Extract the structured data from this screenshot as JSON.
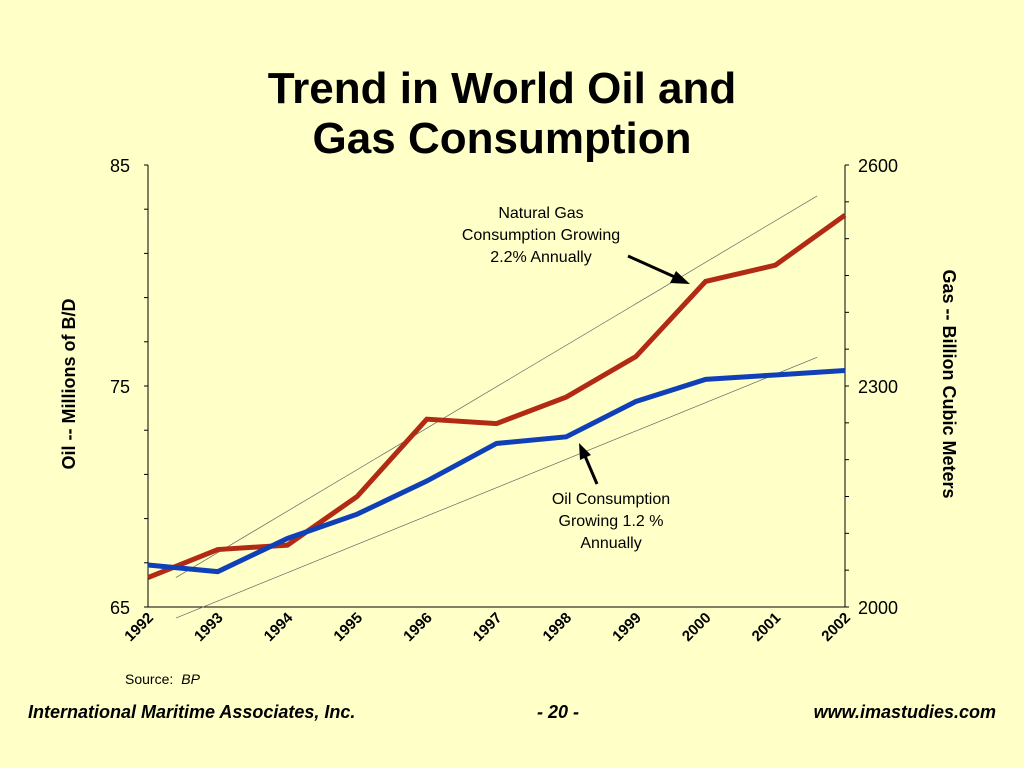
{
  "slide": {
    "title_line1": "Trend in World Oil and",
    "title_line2": "Gas Consumption"
  },
  "chart_data": {
    "type": "line",
    "categories": [
      "1992",
      "1993",
      "1994",
      "1995",
      "1996",
      "1997",
      "1998",
      "1999",
      "2000",
      "2001",
      "2002"
    ],
    "left_axis": {
      "label": "Oil -- Millions of B/D",
      "ylim": [
        65,
        85
      ],
      "ticks": [
        "85",
        "75",
        "65"
      ]
    },
    "right_axis": {
      "label": "Gas -- Billion Cubic Meters",
      "ylim": [
        2000,
        2600
      ],
      "ticks": [
        "2600",
        "2300",
        "2000"
      ]
    },
    "series": [
      {
        "axis": "right",
        "color": "#B22A14",
        "values": [
          2040,
          2078,
          2084,
          2150,
          2255,
          2249,
          2285,
          2340,
          2442,
          2464,
          2532
        ],
        "trend": [
          2040,
          2558
        ]
      },
      {
        "axis": "left",
        "color": "#1040B8",
        "values": [
          66.9,
          66.6,
          68.1,
          69.2,
          70.7,
          72.4,
          72.7,
          74.3,
          75.3,
          75.5,
          75.7
        ],
        "trend": [
          64.5,
          76.3
        ]
      }
    ],
    "annotations": [
      {
        "lines": [
          "Natural Gas",
          "Consumption Growing",
          "2.2% Annually"
        ]
      },
      {
        "lines": [
          "Oil Consumption",
          "Growing 1.2 %",
          "Annually"
        ]
      }
    ],
    "source_label": "Source:",
    "source_value": "BP",
    "grid": false
  },
  "footer": {
    "left": "International Maritime Associates, Inc.",
    "center": "- 20 -",
    "right": "www.imastudies.com"
  }
}
